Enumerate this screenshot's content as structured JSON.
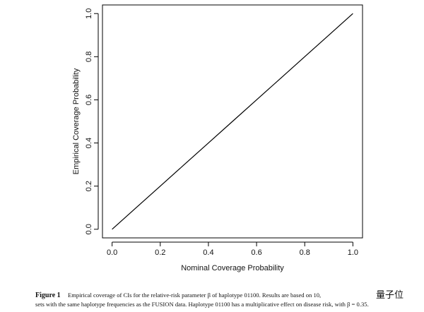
{
  "chart_data": {
    "type": "line",
    "xlabel": "Nominal Coverage Probability",
    "ylabel": "Empirical Coverage Probability",
    "x": [
      0,
      0.1,
      0.2,
      0.3,
      0.4,
      0.5,
      0.6,
      0.7,
      0.8,
      0.9,
      1
    ],
    "series": [
      {
        "color": "#000000",
        "values": [
          0,
          0.1,
          0.2,
          0.3,
          0.4,
          0.5,
          0.6,
          0.7,
          0.8,
          0.9,
          1
        ]
      }
    ],
    "xlim": [
      -0.04,
      1.04
    ],
    "ylim": [
      -0.04,
      1.04
    ],
    "xticks": [
      {
        "value": 0,
        "label": "0.0"
      },
      0.2,
      0.4,
      0.6,
      0.8,
      {
        "value": 1,
        "label": "1.0"
      }
    ],
    "yticks": [
      {
        "value": 0,
        "label": "0.0"
      },
      0.2,
      0.4,
      0.6,
      0.8,
      {
        "value": 1,
        "label": "1.0"
      }
    ]
  },
  "caption": {
    "label": "Figure 1",
    "line1": "Empirical coverage of CIs for the relative-risk parameter β of haplotype 01100. Results are based on 10,",
    "line2": "sets with the same haplotype frequencies as the FUSION data. Haplotype 01100 has a multiplicative effect on disease risk, with β = 0.35.",
    "watermark": "量子位"
  }
}
